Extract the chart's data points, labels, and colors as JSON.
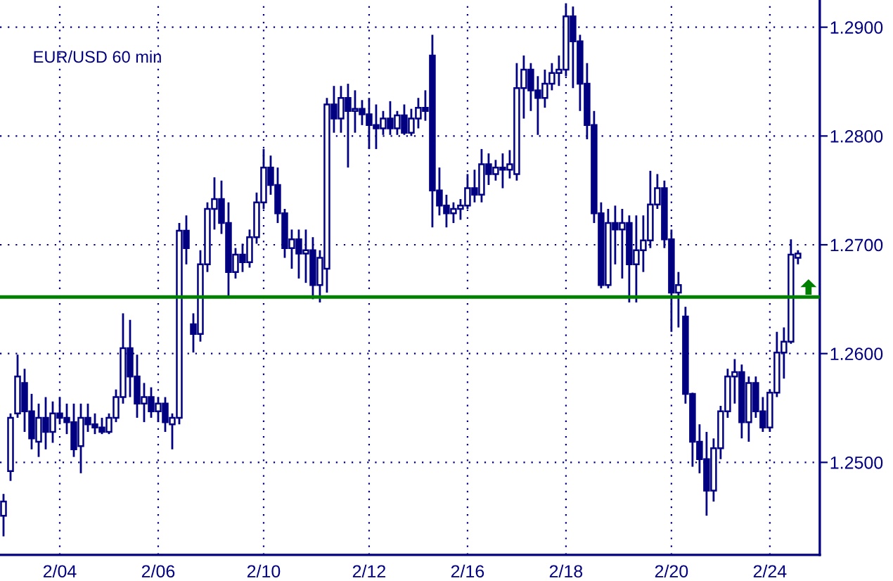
{
  "chart_data": {
    "type": "candlestick",
    "title": "EUR/USD 60 min",
    "color": "#000080",
    "categories": [
      null,
      null,
      null,
      null,
      null,
      null,
      null,
      null,
      "2/04",
      null,
      null,
      null,
      null,
      null,
      null,
      null,
      null,
      null,
      null,
      null,
      null,
      null,
      "2/06",
      null,
      null,
      null,
      null,
      null,
      null,
      null,
      null,
      null,
      null,
      null,
      null,
      null,
      null,
      "2/10",
      null,
      null,
      null,
      null,
      null,
      null,
      null,
      null,
      null,
      null,
      null,
      null,
      null,
      null,
      "2/12",
      null,
      null,
      null,
      null,
      null,
      null,
      null,
      null,
      null,
      null,
      null,
      null,
      null,
      "2/16",
      null,
      null,
      null,
      null,
      null,
      null,
      null,
      null,
      null,
      null,
      null,
      null,
      null,
      "2/18",
      null,
      null,
      null,
      null,
      null,
      null,
      null,
      null,
      null,
      null,
      null,
      null,
      null,
      null,
      "2/20",
      null,
      null,
      null,
      null,
      null,
      null,
      null,
      null,
      null,
      null,
      null,
      null,
      null,
      "2/24",
      null,
      null,
      null,
      null
    ],
    "ohlc": [
      [
        1.2451,
        1.2471,
        1.2432,
        1.2464
      ],
      [
        1.2492,
        1.2545,
        1.2483,
        1.2541
      ],
      [
        1.2545,
        1.2599,
        1.2541,
        1.2579
      ],
      [
        1.2573,
        1.2586,
        1.2528,
        1.2547
      ],
      [
        1.2547,
        1.2563,
        1.2512,
        1.2522
      ],
      [
        1.2519,
        1.2554,
        1.2505,
        1.2541
      ],
      [
        1.2541,
        1.256,
        1.2512,
        1.2528
      ],
      [
        1.2528,
        1.2556,
        1.2518,
        1.2545
      ],
      [
        1.2545,
        1.256,
        1.2535,
        1.2541
      ],
      [
        1.2541,
        1.2554,
        1.2526,
        1.2537
      ],
      [
        1.2537,
        1.2554,
        1.2505,
        1.2512
      ],
      [
        1.2515,
        1.2554,
        1.249,
        1.2541
      ],
      [
        1.2541,
        1.2554,
        1.2528,
        1.2535
      ],
      [
        1.2535,
        1.2545,
        1.2526,
        1.2532
      ],
      [
        1.2532,
        1.2541,
        1.2526,
        1.2528
      ],
      [
        1.2528,
        1.2545,
        1.2526,
        1.2541
      ],
      [
        1.2541,
        1.2567,
        1.2537,
        1.256
      ],
      [
        1.256,
        1.2637,
        1.2554,
        1.2605
      ],
      [
        1.2605,
        1.2631,
        1.256,
        1.2579
      ],
      [
        1.2579,
        1.2599,
        1.2541,
        1.2554
      ],
      [
        1.2554,
        1.2573,
        1.2537,
        1.256
      ],
      [
        1.256,
        1.2569,
        1.2541,
        1.2547
      ],
      [
        1.2547,
        1.256,
        1.2537,
        1.2554
      ],
      [
        1.2554,
        1.256,
        1.2528,
        1.2537
      ],
      [
        1.2535,
        1.2545,
        1.2512,
        1.2541
      ],
      [
        1.2541,
        1.272,
        1.2535,
        1.2713
      ],
      [
        1.2713,
        1.2727,
        1.2682,
        1.2697
      ],
      [
        1.2627,
        1.2637,
        1.2601,
        1.2618
      ],
      [
        1.2618,
        1.2695,
        1.2611,
        1.2682
      ],
      [
        1.2682,
        1.2739,
        1.2675,
        1.2733
      ],
      [
        1.2733,
        1.2762,
        1.2714,
        1.2742
      ],
      [
        1.2742,
        1.2759,
        1.271,
        1.272
      ],
      [
        1.272,
        1.2739,
        1.2652,
        1.2675
      ],
      [
        1.2675,
        1.2697,
        1.2669,
        1.2691
      ],
      [
        1.2691,
        1.2701,
        1.2675,
        1.2684
      ],
      [
        1.2684,
        1.2714,
        1.2679,
        1.2707
      ],
      [
        1.2707,
        1.2748,
        1.2701,
        1.2739
      ],
      [
        1.2739,
        1.2788,
        1.2733,
        1.2771
      ],
      [
        1.2771,
        1.2782,
        1.2746,
        1.2755
      ],
      [
        1.2755,
        1.2771,
        1.272,
        1.2729
      ],
      [
        1.2729,
        1.2733,
        1.2688,
        1.2697
      ],
      [
        1.2697,
        1.2714,
        1.2678,
        1.2705
      ],
      [
        1.2705,
        1.2714,
        1.2669,
        1.2692
      ],
      [
        1.2692,
        1.2714,
        1.2665,
        1.2695
      ],
      [
        1.2695,
        1.2707,
        1.265,
        1.2663
      ],
      [
        1.2663,
        1.2695,
        1.2647,
        1.2688
      ],
      [
        1.2678,
        1.2835,
        1.2656,
        1.2829
      ],
      [
        1.2829,
        1.2846,
        1.2803,
        1.2816
      ],
      [
        1.2816,
        1.2846,
        1.2803,
        1.2835
      ],
      [
        1.2835,
        1.2848,
        1.2771,
        1.2823
      ],
      [
        1.2823,
        1.2842,
        1.2803,
        1.2825
      ],
      [
        1.2825,
        1.2833,
        1.281,
        1.282
      ],
      [
        1.282,
        1.2835,
        1.2788,
        1.281
      ],
      [
        1.281,
        1.2829,
        1.2788,
        1.2807
      ],
      [
        1.2807,
        1.2823,
        1.2801,
        1.2816
      ],
      [
        1.2816,
        1.2832,
        1.2801,
        1.2807
      ],
      [
        1.2807,
        1.2823,
        1.2801,
        1.2819
      ],
      [
        1.2819,
        1.2829,
        1.2801,
        1.2803
      ],
      [
        1.2803,
        1.2825,
        1.28,
        1.2816
      ],
      [
        1.2816,
        1.2835,
        1.2807,
        1.2826
      ],
      [
        1.2826,
        1.2842,
        1.2814,
        1.2823
      ],
      [
        1.2874,
        1.2893,
        1.2716,
        1.275
      ],
      [
        1.275,
        1.2771,
        1.2727,
        1.2736
      ],
      [
        1.2736,
        1.2746,
        1.2716,
        1.2729
      ],
      [
        1.2729,
        1.2739,
        1.272,
        1.2733
      ],
      [
        1.2733,
        1.2742,
        1.2723,
        1.2736
      ],
      [
        1.2736,
        1.2765,
        1.2733,
        1.2752
      ],
      [
        1.2752,
        1.2769,
        1.2739,
        1.2746
      ],
      [
        1.2746,
        1.2788,
        1.2739,
        1.2774
      ],
      [
        1.2774,
        1.2784,
        1.2755,
        1.2765
      ],
      [
        1.2765,
        1.2778,
        1.2759,
        1.2771
      ],
      [
        1.2771,
        1.2784,
        1.2752,
        1.2769
      ],
      [
        1.2769,
        1.2787,
        1.2761,
        1.2774
      ],
      [
        1.2765,
        1.2867,
        1.2759,
        1.2844
      ],
      [
        1.2844,
        1.2874,
        1.2816,
        1.2861
      ],
      [
        1.2861,
        1.2867,
        1.2823,
        1.2842
      ],
      [
        1.2842,
        1.2855,
        1.2801,
        1.2835
      ],
      [
        1.2835,
        1.2861,
        1.2826,
        1.2848
      ],
      [
        1.2848,
        1.2867,
        1.2842,
        1.2858
      ],
      [
        1.2858,
        1.2874,
        1.2846,
        1.2861
      ],
      [
        1.2861,
        1.2922,
        1.2855,
        1.291
      ],
      [
        1.291,
        1.2919,
        1.2844,
        1.2887
      ],
      [
        1.2887,
        1.2893,
        1.2823,
        1.2848
      ],
      [
        1.2848,
        1.2867,
        1.2797,
        1.281
      ],
      [
        1.281,
        1.2823,
        1.272,
        1.2729
      ],
      [
        1.2729,
        1.2739,
        1.266,
        1.2663
      ],
      [
        1.2663,
        1.2733,
        1.266,
        1.272
      ],
      [
        1.272,
        1.2736,
        1.2682,
        1.2714
      ],
      [
        1.2714,
        1.2733,
        1.2669,
        1.272
      ],
      [
        1.272,
        1.2727,
        1.2647,
        1.2682
      ],
      [
        1.2682,
        1.2727,
        1.2647,
        1.2695
      ],
      [
        1.2695,
        1.2727,
        1.2675,
        1.2704
      ],
      [
        1.2704,
        1.2768,
        1.2697,
        1.2737
      ],
      [
        1.2737,
        1.2765,
        1.2733,
        1.2752
      ],
      [
        1.2752,
        1.2759,
        1.2697,
        1.2705
      ],
      [
        1.2705,
        1.2714,
        1.262,
        1.2656
      ],
      [
        1.2656,
        1.2675,
        1.2624,
        1.2663
      ],
      [
        1.2634,
        1.2643,
        1.2554,
        1.2563
      ],
      [
        1.2563,
        1.2564,
        1.2496,
        1.2519
      ],
      [
        1.2519,
        1.2535,
        1.249,
        1.2503
      ],
      [
        1.2503,
        1.2528,
        1.2451,
        1.2474
      ],
      [
        1.2474,
        1.2522,
        1.2464,
        1.2513
      ],
      [
        1.2513,
        1.2552,
        1.2503,
        1.2547
      ],
      [
        1.2547,
        1.2586,
        1.2541,
        1.2579
      ],
      [
        1.2579,
        1.2595,
        1.2554,
        1.2583
      ],
      [
        1.2583,
        1.259,
        1.2522,
        1.2537
      ],
      [
        1.2537,
        1.2579,
        1.2519,
        1.2573
      ],
      [
        1.2573,
        1.2579,
        1.2541,
        1.2547
      ],
      [
        1.2547,
        1.256,
        1.2528,
        1.2532
      ],
      [
        1.2532,
        1.2567,
        1.2528,
        1.2564
      ],
      [
        1.2564,
        1.262,
        1.256,
        1.2601
      ],
      [
        1.2601,
        1.2624,
        1.2577,
        1.2611
      ],
      [
        1.2611,
        1.2705,
        1.2609,
        1.2691
      ],
      [
        1.2688,
        1.2695,
        1.2682,
        1.2692
      ]
    ],
    "ylim": [
      1.2415,
      1.2925
    ],
    "yticks": [
      {
        "value": 1.25,
        "label": "1.2500"
      },
      {
        "value": 1.26,
        "label": "1.2600"
      },
      {
        "value": 1.27,
        "label": "1.2700"
      },
      {
        "value": 1.28,
        "label": "1.2800"
      },
      {
        "value": 1.29,
        "label": "1.2900"
      }
    ],
    "grid": true,
    "ref_lines": [
      {
        "axis": "y",
        "value": 1.2652,
        "color": "#008000"
      }
    ]
  }
}
